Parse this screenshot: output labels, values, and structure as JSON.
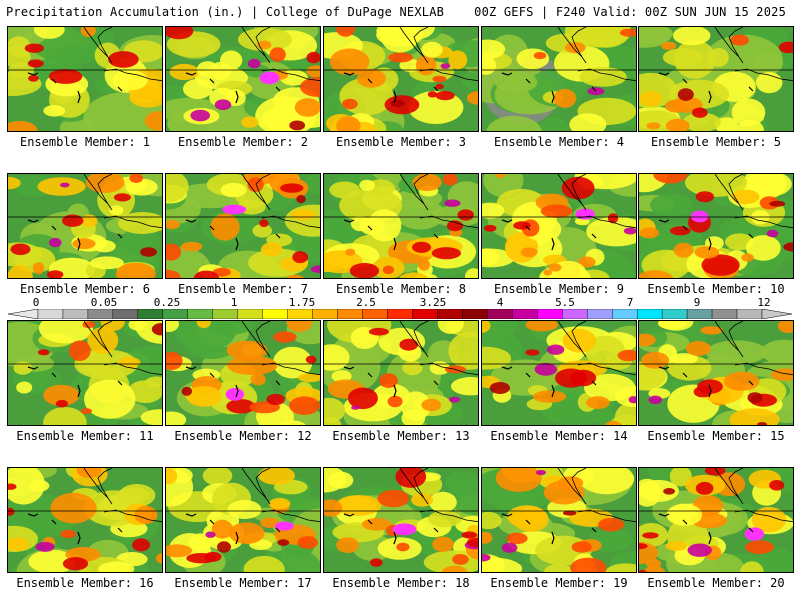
{
  "header": {
    "left": "Precipitation Accumulation (in.) | College of DuPage NEXLAB",
    "right": "00Z GEFS | F240 Valid: 00Z SUN JUN 15 2025"
  },
  "legend": {
    "tick_labels": [
      "0",
      "0.05",
      "0.25",
      "1",
      "1.75",
      "2.5",
      "3.25",
      "4",
      "5.5",
      "7",
      "9",
      "12"
    ],
    "color_steps": [
      "#d8d8d8",
      "#bdbdbd",
      "#8c8c8c",
      "#6e6e6e",
      "#2e7d32",
      "#43a047",
      "#66bb44",
      "#9ccc32",
      "#d4e01c",
      "#ffff00",
      "#ffd700",
      "#ffb000",
      "#ff8c00",
      "#ff6000",
      "#ff2a00",
      "#e00000",
      "#b00000",
      "#8b0000",
      "#a0005a",
      "#c800a0",
      "#ff00ff",
      "#cc66ff",
      "#9f9fff",
      "#66ccff",
      "#00e5ff",
      "#33cccc",
      "#66a0a0",
      "#909090",
      "#b8b8b8"
    ]
  },
  "members": [
    {
      "label": "Ensemble Member: 1"
    },
    {
      "label": "Ensemble Member: 2"
    },
    {
      "label": "Ensemble Member: 3"
    },
    {
      "label": "Ensemble Member: 4"
    },
    {
      "label": "Ensemble Member: 5"
    },
    {
      "label": "Ensemble Member: 6"
    },
    {
      "label": "Ensemble Member: 7"
    },
    {
      "label": "Ensemble Member: 8"
    },
    {
      "label": "Ensemble Member: 9"
    },
    {
      "label": "Ensemble Member: 10"
    },
    {
      "label": "Ensemble Member: 11"
    },
    {
      "label": "Ensemble Member: 12"
    },
    {
      "label": "Ensemble Member: 13"
    },
    {
      "label": "Ensemble Member: 14"
    },
    {
      "label": "Ensemble Member: 15"
    },
    {
      "label": "Ensemble Member: 16"
    },
    {
      "label": "Ensemble Member: 17"
    },
    {
      "label": "Ensemble Member: 18"
    },
    {
      "label": "Ensemble Member: 19"
    },
    {
      "label": "Ensemble Member: 20"
    }
  ]
}
